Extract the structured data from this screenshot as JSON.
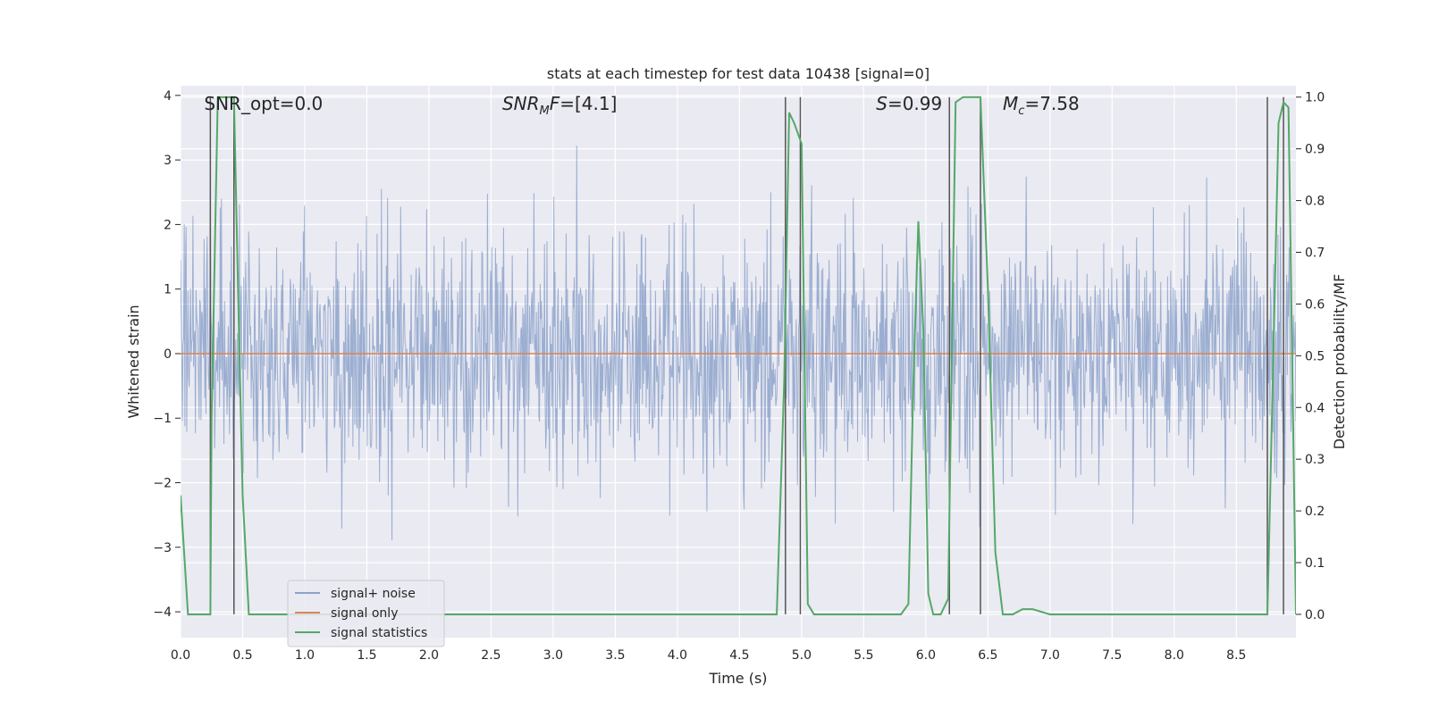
{
  "chart_data": {
    "type": "line",
    "title": "stats at each timestep for test data 10438 [signal=0]",
    "xlabel": "Time (s)",
    "ylabel": "Whitened strain",
    "ylabel_right": "Detection probability/MF",
    "xlim": [
      0.0,
      8.98
    ],
    "ylim": [
      -4.4,
      4.15
    ],
    "ylim_right": [
      -0.045,
      1.022
    ],
    "x_ticks": [
      "0.0",
      "0.5",
      "1.0",
      "1.5",
      "2.0",
      "2.5",
      "3.0",
      "3.5",
      "4.0",
      "4.5",
      "5.0",
      "5.5",
      "6.0",
      "6.5",
      "7.0",
      "7.5",
      "8.0",
      "8.5"
    ],
    "y_ticks": [
      "−4",
      "−3",
      "−2",
      "−1",
      "0",
      "1",
      "2",
      "3",
      "4"
    ],
    "y_ticks_right": [
      "0.0",
      "0.1",
      "0.2",
      "0.3",
      "0.4",
      "0.5",
      "0.6",
      "0.7",
      "0.8",
      "0.9",
      "1.0"
    ],
    "grid": true,
    "background": "#eaeaf2",
    "annotations": [
      {
        "text": "SNR_opt=0.0",
        "x": 0.19
      },
      {
        "text": "SNR_MF=[4.1]",
        "x": 2.59
      },
      {
        "text": "S=0.99",
        "x": 5.6
      },
      {
        "text": "M_c=7.58",
        "x": 6.62
      }
    ],
    "legend_position": "lower-left",
    "series": [
      {
        "name": "signal+ noise",
        "color": "#4c72b0",
        "kind": "noise",
        "sample_count": 1800,
        "std": 0.95,
        "note_range": [
          -4.0,
          3.9
        ]
      },
      {
        "name": "signal only",
        "color": "#dd8452",
        "kind": "constant",
        "value": 0.0
      },
      {
        "name": "signal statistics",
        "color": "#55a868",
        "kind": "line",
        "x": [
          0.0,
          0.06,
          0.1,
          0.2,
          0.24,
          0.25,
          0.3,
          0.35,
          0.4,
          0.43,
          0.47,
          0.5,
          0.55,
          0.6,
          0.7,
          0.8,
          1.0,
          1.5,
          2.0,
          3.0,
          4.0,
          4.5,
          4.8,
          4.86,
          4.9,
          4.94,
          5.0,
          5.05,
          5.1,
          5.2,
          5.5,
          5.8,
          5.86,
          5.9,
          5.94,
          5.98,
          6.02,
          6.06,
          6.12,
          6.18,
          6.24,
          6.3,
          6.44,
          6.5,
          6.56,
          6.62,
          6.7,
          6.78,
          6.86,
          7.0,
          7.5,
          8.0,
          8.5,
          8.75,
          8.8,
          8.84,
          8.88,
          8.92,
          8.98
        ],
        "y": [
          0.23,
          0.0,
          0.0,
          0.0,
          0.0,
          0.38,
          1.0,
          1.0,
          1.0,
          1.0,
          0.55,
          0.23,
          0.0,
          0.0,
          0.0,
          0.0,
          0.0,
          0.0,
          0.0,
          0.0,
          0.0,
          0.0,
          0.0,
          0.45,
          0.97,
          0.95,
          0.91,
          0.02,
          0.0,
          0.0,
          0.0,
          0.0,
          0.02,
          0.45,
          0.76,
          0.55,
          0.04,
          0.0,
          0.0,
          0.03,
          0.99,
          1.0,
          1.0,
          0.63,
          0.12,
          0.0,
          0.0,
          0.01,
          0.01,
          0.0,
          0.0,
          0.0,
          0.0,
          0.0,
          0.52,
          0.95,
          0.99,
          0.98,
          0.0
        ]
      }
    ],
    "vertical_markers": [
      0.24,
      0.43,
      4.87,
      4.99,
      6.19,
      6.44,
      8.75,
      8.88
    ]
  }
}
